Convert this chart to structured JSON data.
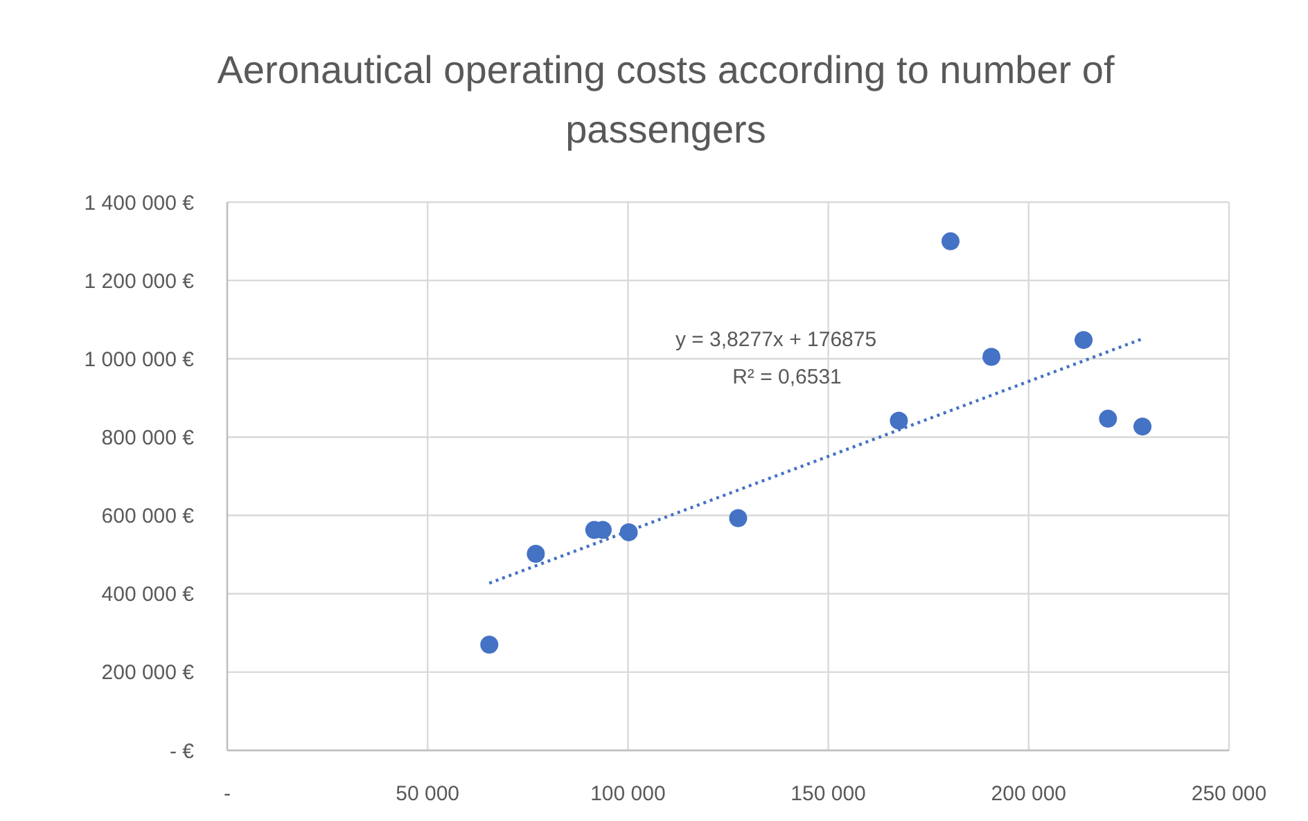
{
  "chart_data": {
    "type": "scatter",
    "title": "Aeronautical operating costs according to number of passengers",
    "x": [
      65400,
      77000,
      91600,
      93700,
      100200,
      127500,
      167600,
      180500,
      190700,
      213700,
      219800,
      228400
    ],
    "series": [
      {
        "color": "#4472c4",
        "marker": "circle",
        "values": [
          270000,
          502000,
          563000,
          563000,
          557000,
          593000,
          842000,
          1300000,
          1005000,
          1048000,
          847000,
          827000
        ]
      },
      {
        "type": "line",
        "color": "#4472c4",
        "line_style": "dotted",
        "x": [
          65400,
          228400
        ],
        "values": [
          427000,
          1051000
        ]
      }
    ],
    "xlim": [
      0,
      250000
    ],
    "xticks": [
      {
        "value": 0,
        "label": "-"
      },
      {
        "value": 50000,
        "label": "50 000"
      },
      {
        "value": 100000,
        "label": "100 000"
      },
      {
        "value": 150000,
        "label": "150 000"
      },
      {
        "value": 200000,
        "label": "200 000"
      },
      {
        "value": 250000,
        "label": "250 000"
      }
    ],
    "ylim": [
      0,
      1400000
    ],
    "yticks": [
      {
        "value": 0,
        "label": "-  €"
      },
      {
        "value": 200000,
        "label": "200 000 €"
      },
      {
        "value": 400000,
        "label": "400 000 €"
      },
      {
        "value": 600000,
        "label": "600 000 €"
      },
      {
        "value": 800000,
        "label": "800 000 €"
      },
      {
        "value": 1000000,
        "label": "1 000 000 €"
      },
      {
        "value": 1200000,
        "label": "1 200 000 €"
      },
      {
        "value": 1400000,
        "label": "1 400 000 €"
      }
    ],
    "grid": true,
    "annotations": [
      "y = 3,8277x + 176875",
      "R² = 0,6531"
    ]
  }
}
